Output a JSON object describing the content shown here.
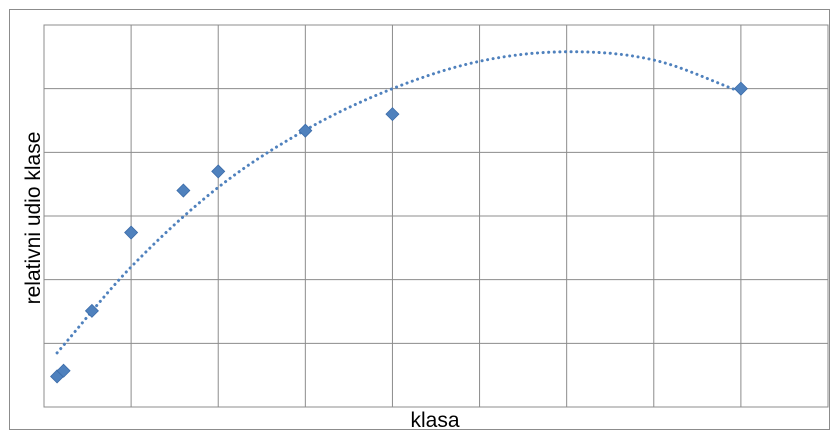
{
  "chart_data": {
    "type": "scatter",
    "title": "",
    "xlabel": "klasa",
    "ylabel": "relativni udio klase",
    "xlim": [
      0,
      18
    ],
    "ylim": [
      0,
      6
    ],
    "grid": true,
    "legend": "none",
    "x_tick_labels_shown": false,
    "y_tick_labels_shown": false,
    "series": [
      {
        "values": [
          {
            "x": 0.3,
            "y": 0.48
          },
          {
            "x": 0.45,
            "y": 0.57
          },
          {
            "x": 1.1,
            "y": 1.51
          },
          {
            "x": 2.0,
            "y": 2.74
          },
          {
            "x": 3.2,
            "y": 3.4
          },
          {
            "x": 4.0,
            "y": 3.7
          },
          {
            "x": 6.0,
            "y": 4.34
          },
          {
            "x": 8.0,
            "y": 4.6
          },
          {
            "x": 16.0,
            "y": 5.0
          }
        ]
      }
    ],
    "trendline": {
      "type": "polynomial",
      "x_range": [
        0.3,
        16.0
      ],
      "values": [
        {
          "x": 0.3,
          "y": 0.85
        },
        {
          "x": 2.0,
          "y": 2.2
        },
        {
          "x": 4.0,
          "y": 3.45
        },
        {
          "x": 6.0,
          "y": 4.35
        },
        {
          "x": 8.0,
          "y": 5.0
        },
        {
          "x": 10.0,
          "y": 5.43
        },
        {
          "x": 12.0,
          "y": 5.58
        },
        {
          "x": 14.0,
          "y": 5.45
        },
        {
          "x": 16.0,
          "y": 4.95
        }
      ]
    },
    "colors": {
      "marker": "#4f81bd",
      "marker_stroke": "#3a6aa7",
      "trendline": "#4f81bd",
      "grid": "#8c8c8c",
      "frame": "#8c8c8c"
    }
  }
}
